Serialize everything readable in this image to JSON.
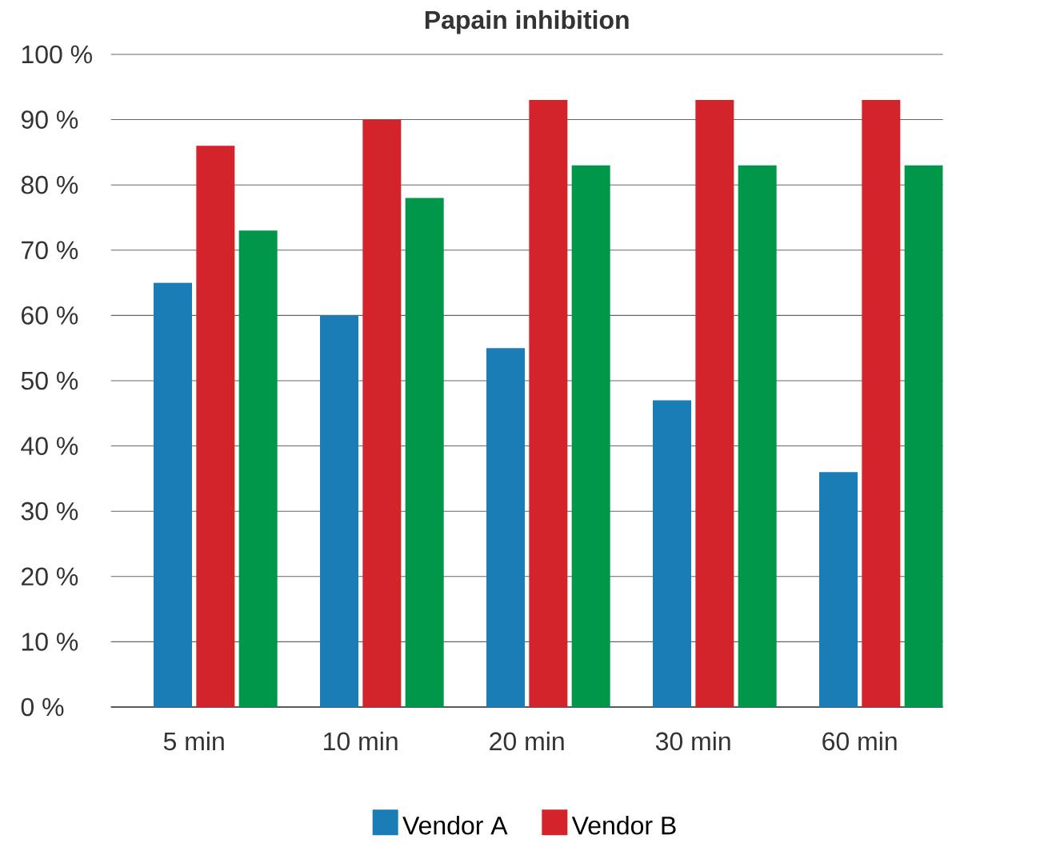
{
  "chart_data": {
    "type": "bar",
    "title": "Papain inhibition",
    "categories": [
      "5 min",
      "10 min",
      "20 min",
      "30 min",
      "60 min"
    ],
    "series": [
      {
        "name": "Vendor A",
        "color": "#1a7db5",
        "values": [
          65,
          60,
          55,
          47,
          36
        ]
      },
      {
        "name": "Vendor B",
        "color": "#d3232b",
        "values": [
          86,
          90,
          93,
          93,
          93
        ]
      },
      {
        "color": "#00974a",
        "values": [
          73,
          78,
          83,
          83,
          83
        ]
      }
    ],
    "ylim": [
      0,
      100
    ],
    "yticks": [
      {
        "value": 0,
        "label": "0 %"
      },
      {
        "value": 10,
        "label": "10 %"
      },
      {
        "value": 20,
        "label": "20 %"
      },
      {
        "value": 30,
        "label": "30 %"
      },
      {
        "value": 40,
        "label": "40 %"
      },
      {
        "value": 50,
        "label": "50 %"
      },
      {
        "value": 60,
        "label": "60 %"
      },
      {
        "value": 70,
        "label": "70 %"
      },
      {
        "value": 80,
        "label": "80 %"
      },
      {
        "value": 90,
        "label": "90 %"
      },
      {
        "value": 100,
        "label": "100 %"
      }
    ],
    "grid": "y",
    "legend": "bottom"
  }
}
